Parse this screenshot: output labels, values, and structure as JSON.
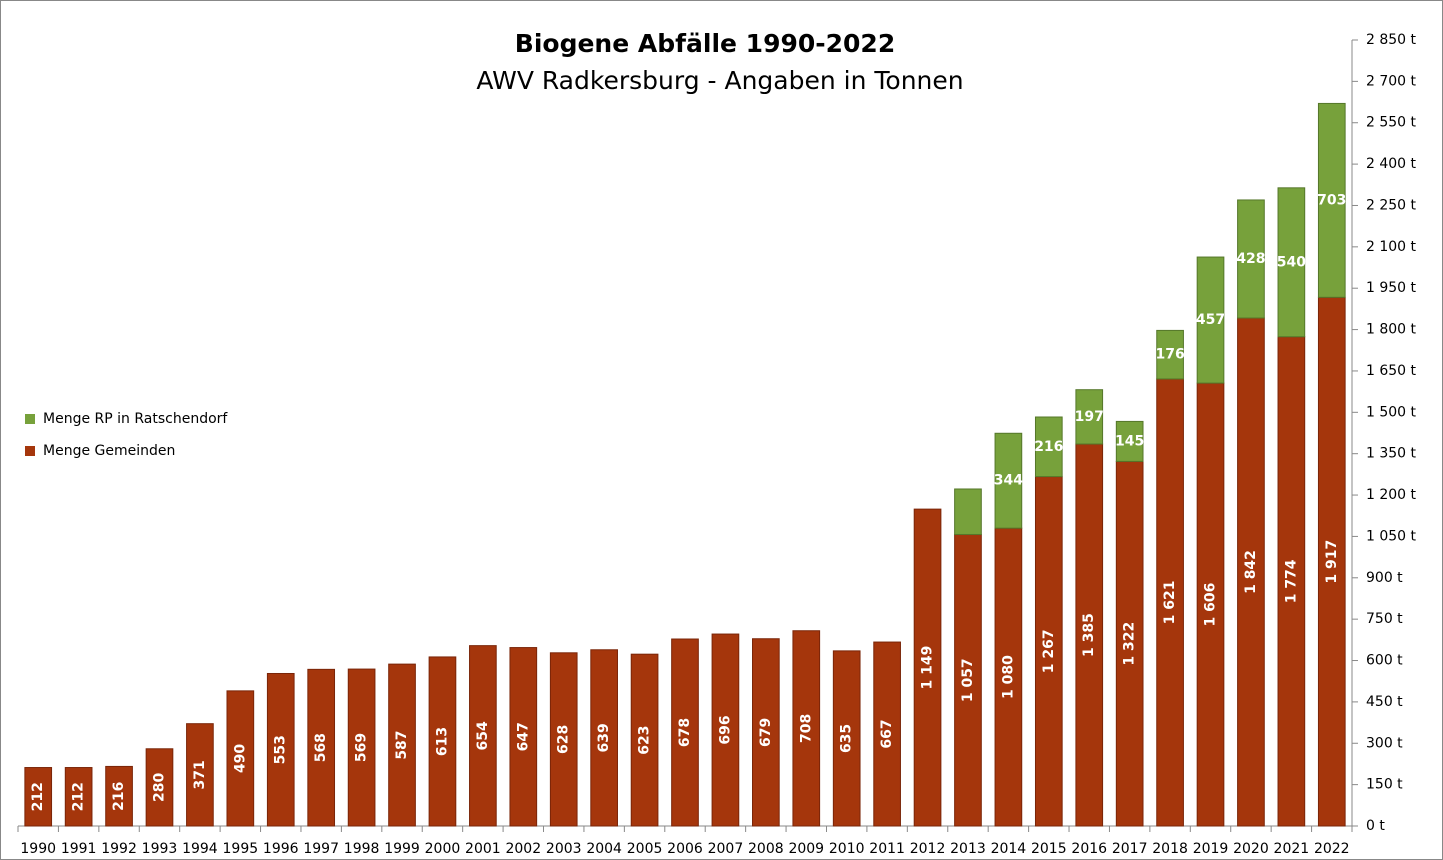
{
  "chart_data": {
    "type": "stacked_bar",
    "title": "Biogene Abfälle 1990-2022",
    "subtitle": "AWV Radkersburg - Angaben in Tonnen",
    "categories": [
      "1990",
      "1991",
      "1992",
      "1993",
      "1994",
      "1995",
      "1996",
      "1997",
      "1998",
      "1999",
      "2000",
      "2001",
      "2002",
      "2003",
      "2004",
      "2005",
      "2006",
      "2007",
      "2008",
      "2009",
      "2010",
      "2011",
      "2012",
      "2013",
      "2014",
      "2015",
      "2016",
      "2017",
      "2018",
      "2019",
      "2020",
      "2021",
      "2022"
    ],
    "series": [
      {
        "name": "Menge Gemeinden",
        "color": "#a5360c",
        "values": [
          212,
          212,
          216,
          280,
          371,
          490,
          553,
          568,
          569,
          587,
          613,
          654,
          647,
          628,
          639,
          623,
          678,
          696,
          679,
          708,
          635,
          667,
          1149,
          1057,
          1080,
          1267,
          1385,
          1322,
          1621,
          1606,
          1842,
          1774,
          1917
        ],
        "value_labels": [
          "212",
          "212",
          "216",
          "280",
          "371",
          "490",
          "553",
          "568",
          "569",
          "587",
          "613",
          "654",
          "647",
          "628",
          "639",
          "623",
          "678",
          "696",
          "679",
          "708",
          "635",
          "667",
          "1 149",
          "1 057",
          "1 080",
          "1 267",
          "1 385",
          "1 322",
          "1 621",
          "1 606",
          "1 842",
          "1 774",
          "1 917"
        ]
      },
      {
        "name": "Menge RP in Ratschendorf",
        "color": "#77a13b",
        "values": [
          null,
          null,
          null,
          null,
          null,
          null,
          null,
          null,
          null,
          null,
          null,
          null,
          null,
          null,
          null,
          null,
          null,
          null,
          null,
          null,
          null,
          null,
          null,
          165,
          344,
          216,
          197,
          145,
          176,
          457,
          428,
          540,
          703
        ],
        "value_labels": [
          null,
          null,
          null,
          null,
          null,
          null,
          null,
          null,
          null,
          null,
          null,
          null,
          null,
          null,
          null,
          null,
          null,
          null,
          null,
          null,
          null,
          null,
          null,
          null,
          "344",
          "216",
          "197",
          "145",
          "176",
          "457",
          "428",
          "540",
          "703"
        ]
      }
    ],
    "ylim": [
      0,
      2850
    ],
    "yticks": [
      {
        "value": 0,
        "label": "0 t"
      },
      {
        "value": 150,
        "label": "150 t"
      },
      {
        "value": 300,
        "label": "300 t"
      },
      {
        "value": 450,
        "label": "450 t"
      },
      {
        "value": 600,
        "label": "600 t"
      },
      {
        "value": 750,
        "label": "750 t"
      },
      {
        "value": 900,
        "label": "900 t"
      },
      {
        "value": 1050,
        "label": "1 050 t"
      },
      {
        "value": 1200,
        "label": "1 200 t"
      },
      {
        "value": 1350,
        "label": "1 350 t"
      },
      {
        "value": 1500,
        "label": "1 500 t"
      },
      {
        "value": 1650,
        "label": "1 650 t"
      },
      {
        "value": 1800,
        "label": "1 800 t"
      },
      {
        "value": 1950,
        "label": "1 950 t"
      },
      {
        "value": 2100,
        "label": "2 100 t"
      },
      {
        "value": 2250,
        "label": "2 250 t"
      },
      {
        "value": 2400,
        "label": "2 400 t"
      },
      {
        "value": 2550,
        "label": "2 550 t"
      },
      {
        "value": 2700,
        "label": "2 700 t"
      },
      {
        "value": 2850,
        "label": "2 850 t"
      }
    ],
    "legend": "left"
  }
}
